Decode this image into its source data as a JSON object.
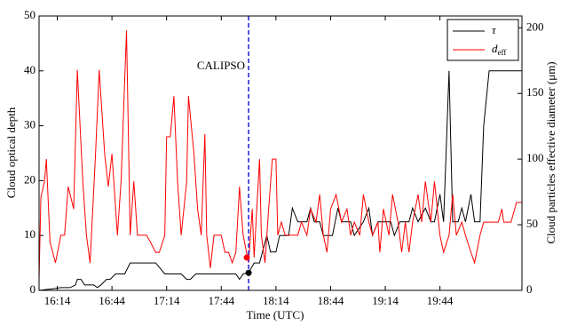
{
  "chart_data": {
    "type": "line",
    "xlabel": "Time (UTC)",
    "ylabel": "Cloud optical depth",
    "y2label": "Cloud particles effective diameter (μm)",
    "xlim": [
      964,
      1229
    ],
    "xticks": [
      {
        "value": 974,
        "label": "16:14"
      },
      {
        "value": 1004,
        "label": "16:44"
      },
      {
        "value": 1034,
        "label": "17:14"
      },
      {
        "value": 1064,
        "label": "17:44"
      },
      {
        "value": 1094,
        "label": "18:14"
      },
      {
        "value": 1124,
        "label": "18:44"
      },
      {
        "value": 1154,
        "label": "19:14"
      },
      {
        "value": 1184,
        "label": "19:44"
      }
    ],
    "ylim": [
      0,
      50
    ],
    "yticks": [
      0,
      10,
      20,
      30,
      40,
      50
    ],
    "y2lim": [
      0,
      209
    ],
    "y2ticks": [
      0,
      50,
      100,
      150,
      200
    ],
    "legend": "upper right",
    "series": [
      {
        "name": "τ",
        "color": "#000000",
        "x": [
          964,
          972,
          976,
          981,
          984,
          985,
          987,
          989,
          994,
          996,
          998,
          1001,
          1003,
          1006,
          1011,
          1014,
          1028,
          1033,
          1042,
          1045,
          1047,
          1050,
          1072,
          1074,
          1076,
          1079,
          1082,
          1085,
          1089,
          1091,
          1094,
          1096,
          1101,
          1103,
          1106,
          1111,
          1113,
          1115,
          1118,
          1120,
          1125,
          1128,
          1130,
          1135,
          1137,
          1142,
          1145,
          1147,
          1150,
          1157,
          1159,
          1162,
          1167,
          1169,
          1172,
          1176,
          1179,
          1181,
          1184,
          1186,
          1189,
          1191,
          1194,
          1196,
          1198,
          1201,
          1203,
          1206,
          1208,
          1211,
          1229
        ],
        "values": [
          0,
          0.3,
          0.5,
          0.5,
          1,
          2,
          2,
          1,
          1,
          0.5,
          1,
          2,
          2,
          3,
          3,
          5,
          5,
          3,
          3,
          2,
          2,
          3,
          3,
          2,
          3,
          3.2,
          5,
          5,
          10,
          7,
          7,
          10,
          10,
          15,
          12.5,
          12.5,
          15,
          12.5,
          12.5,
          10,
          10,
          15,
          12.5,
          12.5,
          10,
          12.5,
          15,
          10,
          12.5,
          12.5,
          10,
          12.5,
          12.5,
          15,
          12.5,
          15,
          12.5,
          12.5,
          17.5,
          12.5,
          40,
          12.5,
          12.5,
          15,
          12.5,
          17.5,
          12.5,
          12.5,
          30,
          40,
          40
        ]
      },
      {
        "name": "d",
        "subscript": "eff",
        "color": "#ff0000",
        "axis": "y2",
        "x": [
          964,
          965,
          967,
          968,
          970,
          973,
          976,
          978,
          980,
          983,
          985,
          988,
          990,
          992,
          995,
          997,
          1000,
          1002,
          1004,
          1007,
          1009,
          1012,
          1014,
          1016,
          1018,
          1020,
          1023,
          1025,
          1028,
          1030,
          1033,
          1034,
          1036,
          1038,
          1040,
          1042,
          1045,
          1046,
          1049,
          1051,
          1053,
          1055,
          1056,
          1058,
          1060,
          1062,
          1064,
          1066,
          1068,
          1070,
          1072,
          1074,
          1076,
          1079,
          1081,
          1082,
          1085,
          1086,
          1088,
          1090,
          1092,
          1094,
          1095,
          1097,
          1099,
          1102,
          1106,
          1108,
          1111,
          1113,
          1116,
          1118,
          1120,
          1122,
          1124,
          1127,
          1130,
          1133,
          1135,
          1137,
          1140,
          1142,
          1145,
          1147,
          1150,
          1151,
          1153,
          1156,
          1158,
          1161,
          1163,
          1165,
          1167,
          1169,
          1172,
          1174,
          1176,
          1179,
          1181,
          1184,
          1186,
          1189,
          1191,
          1193,
          1196,
          1198,
          1201,
          1203,
          1206,
          1208,
          1211,
          1213,
          1216,
          1218,
          1219,
          1223,
          1226,
          1229
        ],
        "values": [
          8,
          71,
          83,
          100,
          37,
          21,
          42,
          42,
          79,
          62,
          168,
          83,
          42,
          21,
          104,
          168,
          104,
          79,
          104,
          42,
          83,
          198,
          42,
          83,
          42,
          42,
          42,
          37,
          29,
          29,
          42,
          117,
          117,
          148,
          83,
          42,
          83,
          148,
          104,
          62,
          42,
          119,
          42,
          17,
          42,
          42,
          42,
          29,
          29,
          21,
          29,
          79,
          42,
          21,
          62,
          25,
          100,
          42,
          21,
          62,
          100,
          100,
          42,
          52,
          42,
          42,
          42,
          52,
          42,
          62,
          52,
          73,
          42,
          29,
          62,
          73,
          52,
          62,
          42,
          52,
          42,
          73,
          52,
          42,
          52,
          29,
          62,
          42,
          73,
          52,
          29,
          52,
          29,
          52,
          73,
          52,
          83,
          52,
          83,
          42,
          29,
          42,
          73,
          42,
          52,
          42,
          29,
          21,
          42,
          52,
          52,
          52,
          52,
          62,
          52,
          52,
          67,
          67
        ]
      }
    ],
    "markers": [
      {
        "x": 1079,
        "value": 3.2,
        "color": "#000000"
      },
      {
        "x": 1078,
        "value": 25,
        "color": "#ff0000",
        "axis": "y2"
      }
    ],
    "annotation": {
      "text": "CALIPSO",
      "x": 1079,
      "color": "#2a2ae0"
    }
  }
}
